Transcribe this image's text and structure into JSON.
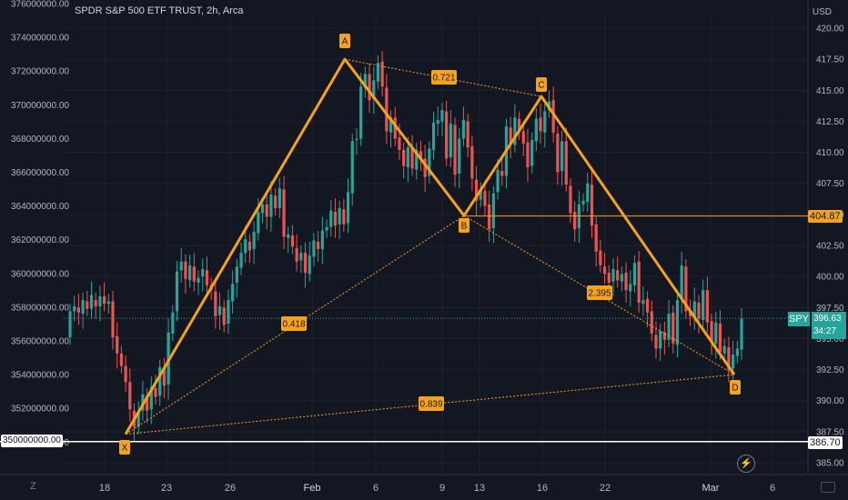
{
  "header": {
    "title": "SPDR S&P 500 ETF TRUST, 2h, Arca"
  },
  "currency": "USD",
  "colors": {
    "up": "#26a69a",
    "down": "#ef5350",
    "pattern": "#f7a21b",
    "bg": "#131722",
    "grid": "#1e222d"
  },
  "right_axis_ticks": [
    "420.00",
    "417.50",
    "415.00",
    "412.50",
    "410.00",
    "407.50",
    "405.00",
    "402.50",
    "400.00",
    "397.50",
    "395.00",
    "392.50",
    "390.00",
    "387.50",
    "385.00"
  ],
  "left_axis_ticks": [
    "376000000.00",
    "374000000.00",
    "372000000.00",
    "370000000.00",
    "368000000.00",
    "366000000.00",
    "364000000.00",
    "362000000.00",
    "360000000.00",
    "358000000.00",
    "356000000.00",
    "354000000.00",
    "352000000.00",
    "350000000.00"
  ],
  "x_axis_ticks": [
    "18",
    "23",
    "26",
    "Feb",
    "6",
    "9",
    "13",
    "16",
    "22",
    "Mar",
    "6"
  ],
  "markers": {
    "price_label": "404.87",
    "last_label": "386.70",
    "left_last_label": "350000000.00",
    "spy_symbol": "SPY",
    "spy_price": "396.63",
    "spy_countdown": "34:27"
  },
  "pattern_labels": {
    "X": "X",
    "A": "A",
    "B": "B",
    "C": "C",
    "D": "D",
    "xb_ratio": "0.418",
    "ac_ratio": "0.721",
    "bd_ratio": "2.395",
    "xd_ratio": "0.839"
  },
  "footer": {
    "left_icon": "Z",
    "right_icon": "⚡"
  },
  "chart_data": {
    "type": "candlestick",
    "title": "SPDR S&P 500 ETF TRUST, 2h, Arca",
    "ylabel": "USD",
    "ylim": [
      384.5,
      421.5
    ],
    "pattern": {
      "points": [
        {
          "name": "X",
          "price": 387.3
        },
        {
          "name": "A",
          "price": 417.5
        },
        {
          "name": "B",
          "price": 404.9
        },
        {
          "name": "C",
          "price": 414.5
        },
        {
          "name": "D",
          "price": 392.1
        }
      ],
      "ratios": {
        "XB": 0.418,
        "AC": 0.721,
        "BD": 2.395,
        "XD": 0.839
      }
    },
    "levels": [
      404.87,
      386.7,
      396.63
    ],
    "candles": [
      [
        395.1,
        397.2
      ],
      [
        397.2,
        397.6
      ],
      [
        397.5,
        397.1
      ],
      [
        397.0,
        398.1
      ],
      [
        398.0,
        397.4
      ],
      [
        397.4,
        398.5
      ],
      [
        398.1,
        397.6
      ],
      [
        397.6,
        398.4
      ],
      [
        398.4,
        397.8
      ],
      [
        397.8,
        398.0
      ],
      [
        398.0,
        395.1
      ],
      [
        395.2,
        393.8
      ],
      [
        393.8,
        392.8
      ],
      [
        392.8,
        391.5
      ],
      [
        391.5,
        389.3
      ],
      [
        389.2,
        387.9
      ],
      [
        387.9,
        389.1
      ],
      [
        389.2,
        390.5
      ],
      [
        390.4,
        389.2
      ],
      [
        389.3,
        391.1
      ],
      [
        391.0,
        390.3
      ],
      [
        390.4,
        392.7
      ],
      [
        392.6,
        391.2
      ],
      [
        391.3,
        395.5
      ],
      [
        395.4,
        397.1
      ],
      [
        397.2,
        400.4
      ],
      [
        400.5,
        401.2
      ],
      [
        401.2,
        399.8
      ],
      [
        399.7,
        400.9
      ],
      [
        400.8,
        399.6
      ],
      [
        399.5,
        399.9
      ],
      [
        400.0,
        400.6
      ],
      [
        400.5,
        399.3
      ],
      [
        399.3,
        398.9
      ],
      [
        398.8,
        396.8
      ],
      [
        396.9,
        397.6
      ],
      [
        397.5,
        396.1
      ],
      [
        396.2,
        398.1
      ],
      [
        398.0,
        399.4
      ],
      [
        399.5,
        400.8
      ],
      [
        400.7,
        401.9
      ],
      [
        401.9,
        403.0
      ],
      [
        402.8,
        402.1
      ],
      [
        402.2,
        403.6
      ],
      [
        403.5,
        405.2
      ],
      [
        405.1,
        405.8
      ],
      [
        405.8,
        404.8
      ],
      [
        404.8,
        406.6
      ],
      [
        406.5,
        405.5
      ],
      [
        405.5,
        407.1
      ],
      [
        407.0,
        403.2
      ],
      [
        403.1,
        403.4
      ],
      [
        403.3,
        402.4
      ],
      [
        402.3,
        401.2
      ],
      [
        401.3,
        401.9
      ],
      [
        401.9,
        400.3
      ],
      [
        400.2,
        401.7
      ],
      [
        401.6,
        402.9
      ],
      [
        402.8,
        402.2
      ],
      [
        402.2,
        403.7
      ],
      [
        403.7,
        404.0
      ],
      [
        404.0,
        405.3
      ],
      [
        405.2,
        404.1
      ],
      [
        404.2,
        405.5
      ],
      [
        405.4,
        404.2
      ],
      [
        404.3,
        406.8
      ],
      [
        406.7,
        410.9
      ],
      [
        411.0,
        411.1
      ],
      [
        411.1,
        415.3
      ],
      [
        415.2,
        416.3
      ],
      [
        416.3,
        414.2
      ],
      [
        414.3,
        415.8
      ],
      [
        415.7,
        417.2
      ],
      [
        417.3,
        415.3
      ],
      [
        415.2,
        411.7
      ],
      [
        411.6,
        412.8
      ],
      [
        412.8,
        411.1
      ],
      [
        411.2,
        410.2
      ],
      [
        410.2,
        408.9
      ],
      [
        408.8,
        410.4
      ],
      [
        410.3,
        408.7
      ],
      [
        408.6,
        410.2
      ],
      [
        410.1,
        409.5
      ],
      [
        409.5,
        408.0
      ],
      [
        408.1,
        410.3
      ],
      [
        410.2,
        412.4
      ],
      [
        412.3,
        412.6
      ],
      [
        412.5,
        413.4
      ],
      [
        413.3,
        409.5
      ],
      [
        409.6,
        412.3
      ],
      [
        412.2,
        408.2
      ],
      [
        408.3,
        411.1
      ],
      [
        411.1,
        412.6
      ],
      [
        412.5,
        410.4
      ],
      [
        410.5,
        407.9
      ],
      [
        407.8,
        406.1
      ],
      [
        406.2,
        407.0
      ],
      [
        406.9,
        405.7
      ],
      [
        405.8,
        403.8
      ],
      [
        403.9,
        406.7
      ],
      [
        406.8,
        408.6
      ],
      [
        408.5,
        408.1
      ],
      [
        408.1,
        412.1
      ],
      [
        412.0,
        410.7
      ],
      [
        410.6,
        412.8
      ],
      [
        412.7,
        411.8
      ],
      [
        411.7,
        410.7
      ],
      [
        410.8,
        408.8
      ],
      [
        408.9,
        411.0
      ],
      [
        410.9,
        412.7
      ],
      [
        412.8,
        411.7
      ],
      [
        411.6,
        413.3
      ],
      [
        413.4,
        414.1
      ],
      [
        414.2,
        411.6
      ],
      [
        411.5,
        408.4
      ],
      [
        408.5,
        410.9
      ],
      [
        410.9,
        407.4
      ],
      [
        407.3,
        405.1
      ],
      [
        405.2,
        403.8
      ],
      [
        403.9,
        405.8
      ],
      [
        405.8,
        406.1
      ],
      [
        406.0,
        407.5
      ],
      [
        407.4,
        404.1
      ],
      [
        404.2,
        402.0
      ],
      [
        402.1,
        400.9
      ],
      [
        400.8,
        400.2
      ],
      [
        400.3,
        399.5
      ],
      [
        399.6,
        400.6
      ],
      [
        400.5,
        399.7
      ],
      [
        399.6,
        400.2
      ],
      [
        400.3,
        398.9
      ],
      [
        398.8,
        399.4
      ],
      [
        399.3,
        401.1
      ],
      [
        401.2,
        397.9
      ],
      [
        397.8,
        398.1
      ],
      [
        398.2,
        397.1
      ],
      [
        397.2,
        395.4
      ],
      [
        395.3,
        394.2
      ],
      [
        394.2,
        395.6
      ],
      [
        395.5,
        394.9
      ],
      [
        394.9,
        397.0
      ],
      [
        397.1,
        394.6
      ],
      [
        394.5,
        398.1
      ],
      [
        398.2,
        400.9
      ],
      [
        400.8,
        397.2
      ],
      [
        397.3,
        396.8
      ],
      [
        396.7,
        398.0
      ],
      [
        397.9,
        396.6
      ],
      [
        396.5,
        398.9
      ],
      [
        398.9,
        396.3
      ],
      [
        396.4,
        394.7
      ],
      [
        394.6,
        396.3
      ],
      [
        396.2,
        393.9
      ],
      [
        393.8,
        394.4
      ],
      [
        394.3,
        392.5
      ],
      [
        392.6,
        393.7
      ],
      [
        393.6,
        394.2
      ],
      [
        394.1,
        396.6
      ]
    ]
  }
}
